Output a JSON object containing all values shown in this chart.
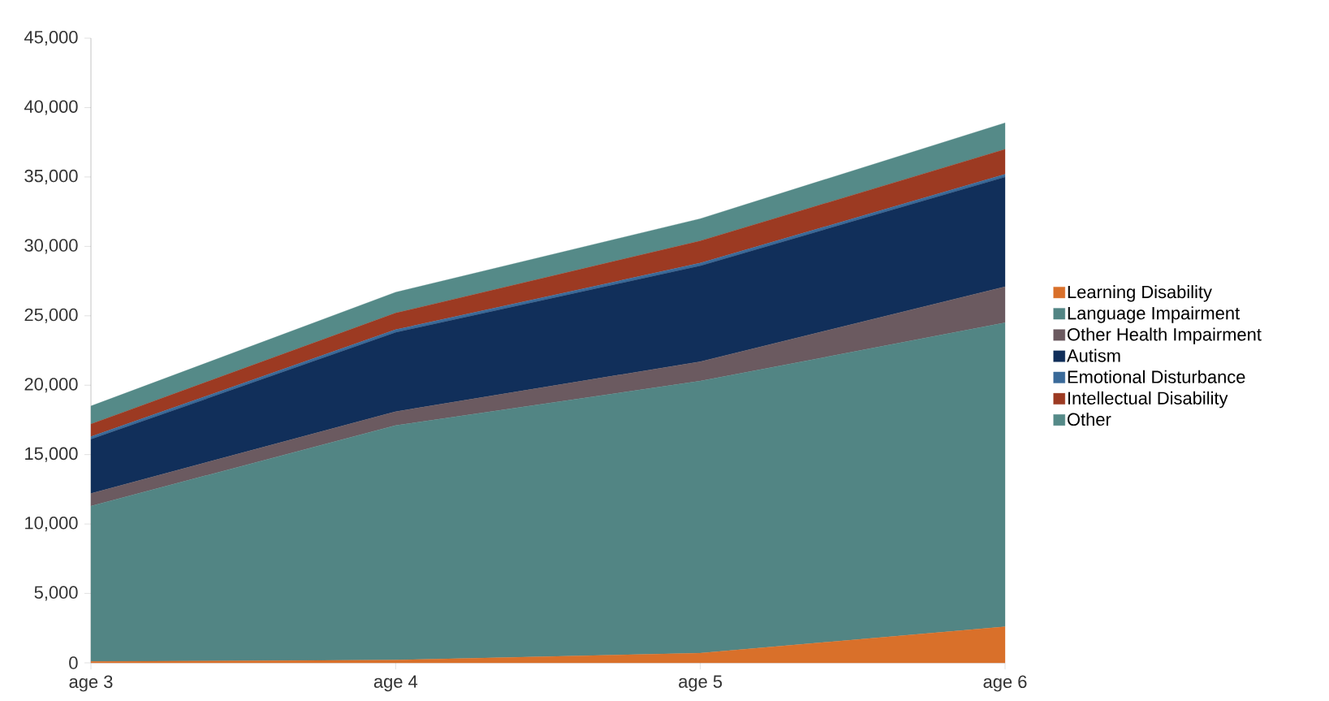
{
  "chart_data": {
    "type": "area",
    "stacked": true,
    "legend": "right",
    "grid": false,
    "categories": [
      "age 3",
      "age 4",
      "age 5",
      "age 6"
    ],
    "ylim": [
      0,
      45000
    ],
    "yticks": [
      0,
      {
        "value": 5000,
        "label": "5,000"
      },
      {
        "value": 10000,
        "label": "10,000"
      },
      {
        "value": 15000,
        "label": "15,000"
      },
      {
        "value": 20000,
        "label": "20,000"
      },
      {
        "value": 25000,
        "label": "25,000"
      },
      {
        "value": 30000,
        "label": "30,000"
      },
      {
        "value": 35000,
        "label": "35,000"
      },
      {
        "value": 40000,
        "label": "40,000"
      },
      {
        "value": 45000,
        "label": "45,000"
      }
    ],
    "series": [
      {
        "name": "Learning Disability",
        "color": "#d9702a",
        "values": [
          100,
          200,
          700,
          2600
        ]
      },
      {
        "name": "Language Impairment",
        "color": "#528584",
        "values": [
          11200,
          16900,
          19600,
          21900
        ]
      },
      {
        "name": "Other Health Impairment",
        "color": "#6b5a60",
        "values": [
          900,
          1000,
          1400,
          2600
        ]
      },
      {
        "name": "Autism",
        "color": "#112f5a",
        "values": [
          3900,
          5700,
          6900,
          7900
        ]
      },
      {
        "name": "Emotional Disturbance",
        "color": "#3a6a99",
        "values": [
          200,
          200,
          200,
          200
        ]
      },
      {
        "name": "Intellectual Disability",
        "color": "#9c3a22",
        "values": [
          900,
          1200,
          1600,
          1800
        ]
      },
      {
        "name": "Other",
        "color": "#558a88",
        "values": [
          1300,
          1500,
          1600,
          1900
        ]
      }
    ]
  }
}
